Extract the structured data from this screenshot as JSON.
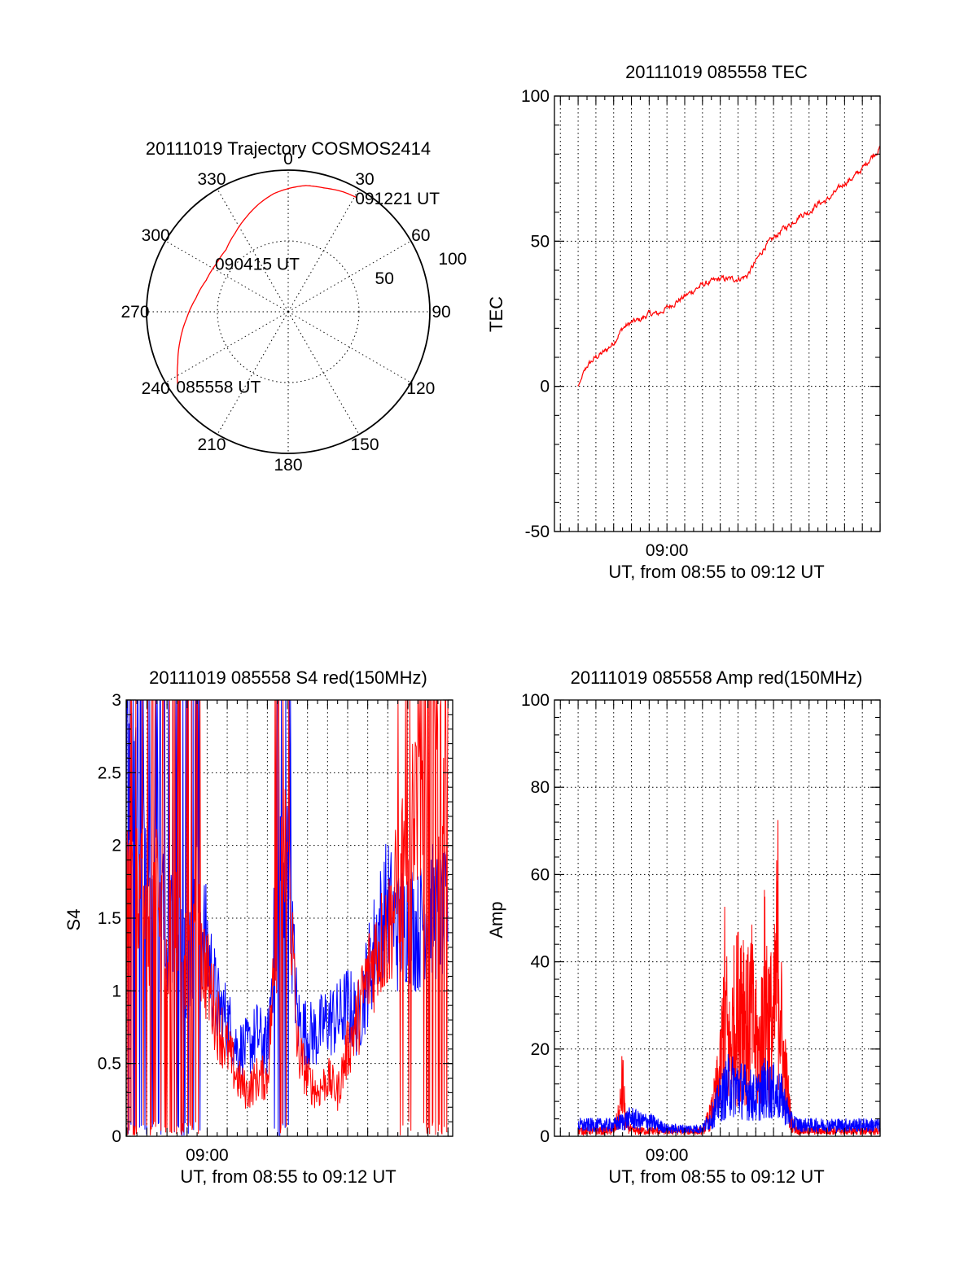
{
  "colors": {
    "red": "#ff0000",
    "blue": "#0000ff",
    "frame": "#000000"
  },
  "chart_data": [
    {
      "type": "polar",
      "title": "20111019 Trajectory COSMOS2414",
      "azimuth_labels": [
        "0",
        "30",
        "60",
        "90",
        "120",
        "150",
        "180",
        "210",
        "240",
        "270",
        "300",
        "330"
      ],
      "azimuth_values": [
        0,
        30,
        60,
        90,
        120,
        150,
        180,
        210,
        240,
        270,
        300,
        330
      ],
      "radius_labels": [
        "50",
        "100"
      ],
      "radius_values": [
        50,
        100
      ],
      "series": [
        {
          "color": "red",
          "points": [
            {
              "az": 236,
              "r": 94
            },
            {
              "az": 245,
              "r": 86
            },
            {
              "az": 255,
              "r": 79
            },
            {
              "az": 266,
              "r": 72
            },
            {
              "az": 278,
              "r": 66
            },
            {
              "az": 291,
              "r": 62
            },
            {
              "az": 304,
              "r": 61
            },
            {
              "az": 315,
              "r": 62
            },
            {
              "az": 326,
              "r": 67
            },
            {
              "az": 336,
              "r": 73
            },
            {
              "az": 345,
              "r": 79
            },
            {
              "az": 353,
              "r": 84
            },
            {
              "az": 0,
              "r": 87
            },
            {
              "az": 8,
              "r": 90
            },
            {
              "az": 16,
              "r": 91
            },
            {
              "az": 24,
              "r": 93
            },
            {
              "az": 31,
              "r": 94
            }
          ]
        }
      ],
      "annotations": [
        {
          "text": "085558 UT",
          "az": 236,
          "r": 94
        },
        {
          "text": "090415 UT",
          "az": 304,
          "r": 61
        },
        {
          "text": "091221 UT",
          "az": 31,
          "r": 94
        }
      ]
    },
    {
      "type": "line",
      "title": "20111019 085558 TEC",
      "xlabel": "UT, from 08:55 to 09:12 UT",
      "ylabel": "TEC",
      "xlim": [
        "08:53:40",
        "09:12:00"
      ],
      "ylim": [
        -50,
        100
      ],
      "yticks": [
        "-50",
        "0",
        "50",
        "100"
      ],
      "ytick_values": [
        -50,
        0,
        50,
        100
      ],
      "xtick_labels": [
        {
          "label": "09:00",
          "t": "09:00:00"
        }
      ],
      "grid": true,
      "series": [
        {
          "color": "red",
          "x": [
            "08:55:00",
            "08:55:30",
            "08:56:00",
            "08:56:30",
            "08:57:00",
            "08:57:30",
            "08:58:00",
            "08:58:30",
            "08:59:00",
            "08:59:30",
            "09:00:00",
            "09:00:30",
            "09:01:00",
            "09:01:30",
            "09:02:00",
            "09:02:30",
            "09:03:00",
            "09:03:30",
            "09:04:00",
            "09:04:30",
            "09:05:00",
            "09:05:30",
            "09:06:00",
            "09:06:30",
            "09:07:00",
            "09:07:30",
            "09:08:00",
            "09:08:30",
            "09:09:00",
            "09:09:30",
            "09:10:00",
            "09:10:30",
            "09:11:00",
            "09:11:30",
            "09:12:00"
          ],
          "y": [
            0,
            7,
            10,
            12,
            15,
            20,
            22,
            23,
            25,
            25,
            27,
            29,
            31,
            33,
            35,
            36,
            37,
            37,
            37,
            38,
            43,
            48,
            51,
            54,
            56,
            59,
            60,
            63,
            64,
            67,
            70,
            72,
            75,
            79,
            82
          ]
        }
      ]
    },
    {
      "type": "line",
      "title": "20111019 085558 S4 red(150MHz)",
      "xlabel": "UT, from 08:55 to 09:12 UT",
      "ylabel": "S4",
      "xlim": [
        "08:55:58",
        "09:12:14"
      ],
      "ylim": [
        0,
        3
      ],
      "yticks": [
        "0",
        "0.5",
        "1",
        "1.5",
        "2",
        "2.5",
        "3"
      ],
      "ytick_values": [
        0,
        0.5,
        1,
        1.5,
        2,
        2.5,
        3
      ],
      "xtick_labels": [
        {
          "label": "09:00",
          "t": "09:00:00"
        }
      ],
      "grid": true,
      "series": [
        {
          "color": "blue",
          "x": [
            "08:55:58",
            "08:56:30",
            "08:57:00",
            "08:57:30",
            "08:58:00",
            "08:58:30",
            "08:59:00",
            "08:59:30",
            "09:00:00",
            "09:00:30",
            "09:01:00",
            "09:01:30",
            "09:02:00",
            "09:02:30",
            "09:03:00",
            "09:03:30",
            "09:04:00",
            "09:04:30",
            "09:05:00",
            "09:05:30",
            "09:06:00",
            "09:06:30",
            "09:07:00",
            "09:07:30",
            "09:08:00",
            "09:08:30",
            "09:09:00",
            "09:09:30",
            "09:10:00",
            "09:10:30",
            "09:11:00",
            "09:11:30",
            "09:12:00"
          ],
          "y": [
            3.0,
            2.4,
            1.5,
            2.0,
            1.2,
            1.8,
            1.1,
            1.6,
            1.3,
            0.9,
            0.8,
            0.6,
            0.6,
            0.7,
            0.6,
            1.7,
            1.9,
            0.8,
            0.7,
            0.7,
            0.8,
            0.8,
            0.9,
            0.8,
            1.1,
            1.4,
            1.6,
            1.4,
            1.5,
            1.4,
            1.6,
            1.5,
            1.5
          ]
        },
        {
          "color": "red",
          "x": [
            "08:55:58",
            "08:56:30",
            "08:57:00",
            "08:57:30",
            "08:58:00",
            "08:58:30",
            "08:59:00",
            "08:59:30",
            "09:00:00",
            "09:00:30",
            "09:01:00",
            "09:01:30",
            "09:02:00",
            "09:02:30",
            "09:03:00",
            "09:03:30",
            "09:04:00",
            "09:04:30",
            "09:05:00",
            "09:05:30",
            "09:06:00",
            "09:06:30",
            "09:07:00",
            "09:07:30",
            "09:08:00",
            "09:08:30",
            "09:09:00",
            "09:09:30",
            "09:10:00",
            "09:10:30",
            "09:11:00",
            "09:11:30",
            "09:12:00"
          ],
          "y": [
            2.2,
            1.9,
            1.4,
            1.7,
            1.3,
            1.5,
            1.2,
            1.4,
            1.1,
            0.8,
            0.6,
            0.4,
            0.3,
            0.4,
            0.4,
            1.5,
            2.0,
            0.6,
            0.4,
            0.3,
            0.4,
            0.3,
            0.6,
            0.8,
            1.1,
            1.3,
            1.4,
            1.7,
            2.2,
            2.4,
            2.5,
            2.6,
            2.5
          ]
        }
      ]
    },
    {
      "type": "line",
      "title": "20111019 085558 Amp red(150MHz)",
      "xlabel": "UT, from 08:55 to 09:12 UT",
      "ylabel": "Amp",
      "xlim": [
        "08:53:40",
        "09:12:00"
      ],
      "ylim": [
        0,
        100
      ],
      "yticks": [
        "0",
        "20",
        "40",
        "60",
        "80",
        "100"
      ],
      "ytick_values": [
        0,
        20,
        40,
        60,
        80,
        100
      ],
      "xtick_labels": [
        {
          "label": "09:00",
          "t": "09:00:00"
        }
      ],
      "grid": true,
      "series": [
        {
          "color": "red",
          "x": [
            "08:55:00",
            "08:56:00",
            "08:57:00",
            "08:57:20",
            "08:57:30",
            "08:57:40",
            "08:58:00",
            "08:59:00",
            "09:00:00",
            "09:01:00",
            "09:02:00",
            "09:02:30",
            "09:03:00",
            "09:03:15",
            "09:03:30",
            "09:03:45",
            "09:04:00",
            "09:04:15",
            "09:04:30",
            "09:04:45",
            "09:05:00",
            "09:05:15",
            "09:05:30",
            "09:05:45",
            "09:06:00",
            "09:06:15",
            "09:06:30",
            "09:06:45",
            "09:07:00",
            "09:07:15",
            "09:07:30",
            "09:08:00",
            "09:09:00",
            "09:10:00",
            "09:11:00",
            "09:12:00"
          ],
          "y": [
            2,
            2,
            2,
            8,
            20,
            6,
            2,
            2,
            2,
            2,
            2,
            8,
            22,
            49,
            30,
            40,
            45,
            56,
            38,
            46,
            33,
            30,
            54,
            42,
            38,
            70,
            30,
            18,
            5,
            3,
            2,
            2,
            2,
            2,
            2,
            2
          ]
        },
        {
          "color": "blue",
          "x": [
            "08:55:00",
            "08:56:00",
            "08:57:00",
            "08:57:30",
            "08:58:00",
            "08:58:30",
            "08:59:00",
            "08:59:30",
            "09:00:00",
            "09:01:00",
            "09:02:00",
            "09:02:30",
            "09:03:00",
            "09:03:30",
            "09:04:00",
            "09:04:30",
            "09:05:00",
            "09:05:30",
            "09:06:00",
            "09:06:30",
            "09:07:00",
            "09:07:30",
            "09:08:00",
            "09:09:00",
            "09:10:00",
            "09:11:00",
            "09:12:00"
          ],
          "y": [
            3,
            3,
            3,
            4,
            5,
            4,
            4,
            3,
            2,
            2,
            2,
            5,
            10,
            14,
            13,
            12,
            10,
            13,
            12,
            10,
            4,
            3,
            3,
            3,
            3,
            3,
            3
          ]
        }
      ]
    }
  ]
}
